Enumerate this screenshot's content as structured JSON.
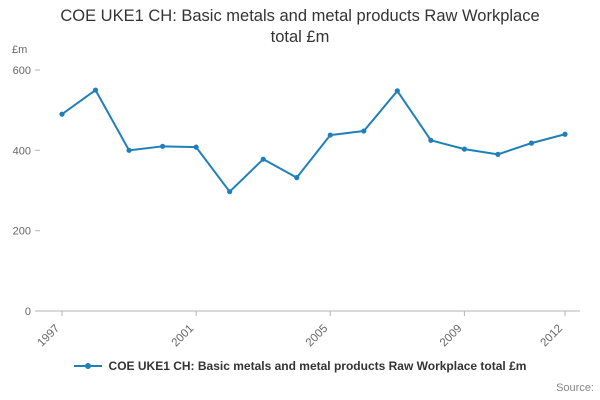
{
  "chart_data": {
    "type": "line",
    "title": "COE UKE1 CH: Basic metals and metal products Raw Workplace total £m",
    "ylabel": "£m",
    "x": [
      1997,
      1998,
      1999,
      2000,
      2001,
      2002,
      2003,
      2004,
      2005,
      2006,
      2007,
      2008,
      2009,
      2010,
      2011,
      2012
    ],
    "values": [
      490,
      550,
      400,
      410,
      408,
      297,
      378,
      332,
      438,
      448,
      548,
      425,
      403,
      390,
      418,
      440
    ],
    "ylim": [
      0,
      600
    ],
    "yticks": [
      0,
      200,
      400,
      600
    ],
    "xticks": [
      1997,
      2001,
      2005,
      2009,
      2012
    ],
    "legend": [
      "COE UKE1 CH: Basic metals and metal products Raw Workplace total £m"
    ],
    "legend_position": "bottom",
    "grid": false,
    "line_color": "#1f80b9",
    "axis_color": "#b3b3b3",
    "tick_label_color": "#666666"
  },
  "footer": {
    "source_label": "Source:"
  }
}
